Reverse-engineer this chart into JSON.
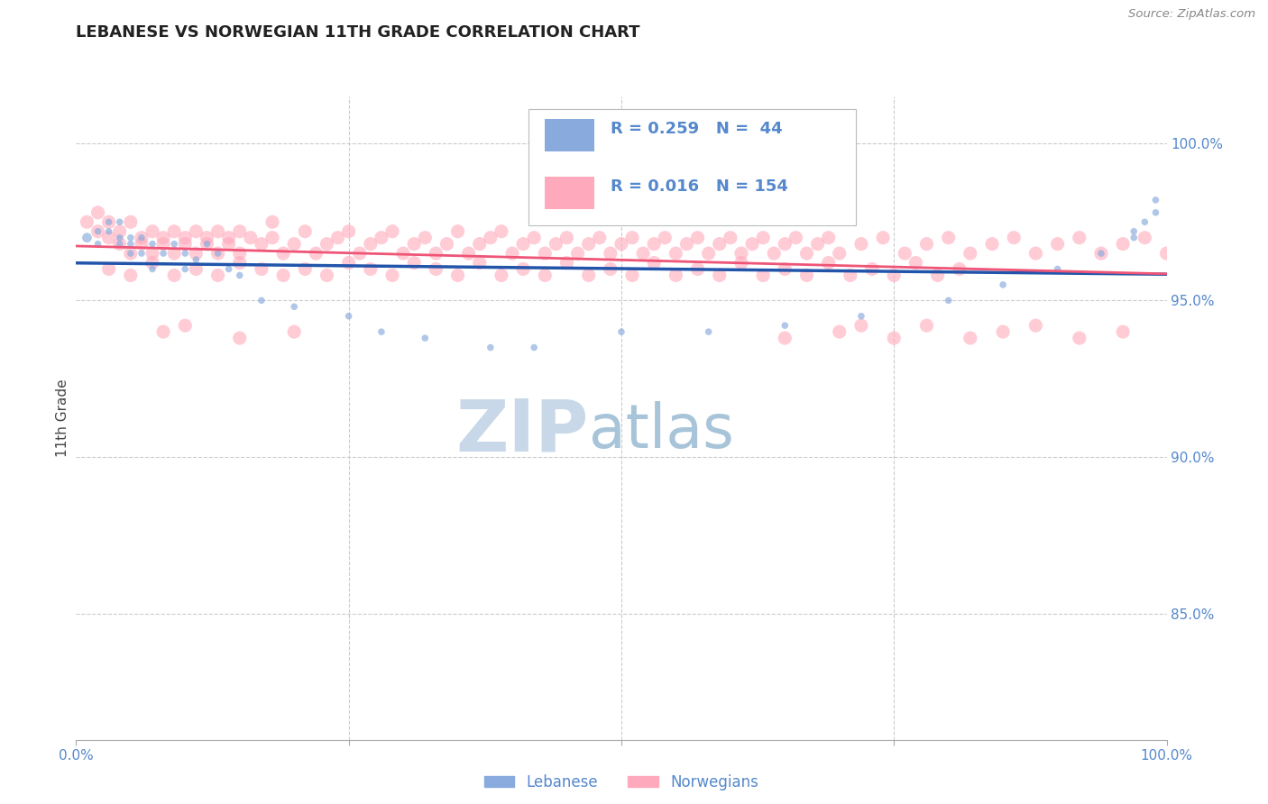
{
  "title": "LEBANESE VS NORWEGIAN 11TH GRADE CORRELATION CHART",
  "source": "Source: ZipAtlas.com",
  "ylabel": "11th Grade",
  "xlim": [
    0.0,
    1.0
  ],
  "ylim": [
    0.81,
    1.015
  ],
  "right_yticks": [
    1.0,
    0.95,
    0.9,
    0.85
  ],
  "right_yticklabels": [
    "100.0%",
    "95.0%",
    "90.0%",
    "85.0%"
  ],
  "lebanese_R": 0.259,
  "lebanese_N": 44,
  "norwegian_R": 0.016,
  "norwegian_N": 154,
  "blue_color": "#88AADD",
  "pink_color": "#FFAABC",
  "blue_line_color": "#2255AA",
  "pink_line_color": "#EE5577",
  "axis_color": "#5588CC",
  "watermark_zip_color": "#C8D8E8",
  "watermark_atlas_color": "#A8C4D8",
  "background_color": "#FFFFFF",
  "grid_color": "#CCCCCC",
  "lebanese_x": [
    0.01,
    0.02,
    0.02,
    0.03,
    0.03,
    0.04,
    0.04,
    0.04,
    0.05,
    0.05,
    0.05,
    0.06,
    0.06,
    0.07,
    0.07,
    0.08,
    0.09,
    0.1,
    0.1,
    0.11,
    0.12,
    0.13,
    0.14,
    0.15,
    0.17,
    0.2,
    0.25,
    0.28,
    0.32,
    0.38,
    0.42,
    0.5,
    0.58,
    0.65,
    0.72,
    0.8,
    0.85,
    0.9,
    0.94,
    0.97,
    0.97,
    0.98,
    0.99,
    0.99
  ],
  "lebanese_y": [
    0.97,
    0.968,
    0.972,
    0.972,
    0.975,
    0.97,
    0.968,
    0.975,
    0.97,
    0.965,
    0.968,
    0.965,
    0.97,
    0.96,
    0.968,
    0.965,
    0.968,
    0.96,
    0.965,
    0.963,
    0.968,
    0.965,
    0.96,
    0.958,
    0.95,
    0.948,
    0.945,
    0.94,
    0.938,
    0.935,
    0.935,
    0.94,
    0.94,
    0.942,
    0.945,
    0.95,
    0.955,
    0.96,
    0.965,
    0.97,
    0.972,
    0.975,
    0.978,
    0.982
  ],
  "lebanese_sizes": [
    60,
    30,
    30,
    30,
    30,
    30,
    30,
    30,
    30,
    30,
    30,
    30,
    30,
    30,
    30,
    30,
    30,
    30,
    30,
    30,
    30,
    30,
    30,
    30,
    30,
    30,
    30,
    30,
    30,
    30,
    30,
    30,
    30,
    30,
    30,
    30,
    30,
    30,
    30,
    30,
    30,
    30,
    30,
    30
  ],
  "norwegian_x": [
    0.01,
    0.02,
    0.02,
    0.03,
    0.03,
    0.04,
    0.04,
    0.05,
    0.05,
    0.06,
    0.06,
    0.07,
    0.07,
    0.08,
    0.08,
    0.09,
    0.09,
    0.1,
    0.1,
    0.11,
    0.11,
    0.12,
    0.12,
    0.13,
    0.13,
    0.14,
    0.14,
    0.15,
    0.15,
    0.16,
    0.17,
    0.18,
    0.18,
    0.19,
    0.2,
    0.21,
    0.22,
    0.23,
    0.24,
    0.25,
    0.26,
    0.27,
    0.28,
    0.29,
    0.3,
    0.31,
    0.32,
    0.33,
    0.34,
    0.35,
    0.36,
    0.37,
    0.38,
    0.39,
    0.4,
    0.41,
    0.42,
    0.43,
    0.44,
    0.45,
    0.46,
    0.47,
    0.48,
    0.49,
    0.5,
    0.51,
    0.52,
    0.53,
    0.54,
    0.55,
    0.56,
    0.57,
    0.58,
    0.59,
    0.6,
    0.61,
    0.62,
    0.63,
    0.64,
    0.65,
    0.66,
    0.67,
    0.68,
    0.69,
    0.7,
    0.72,
    0.74,
    0.76,
    0.78,
    0.8,
    0.82,
    0.84,
    0.86,
    0.88,
    0.9,
    0.92,
    0.94,
    0.96,
    0.98,
    1.0,
    0.03,
    0.05,
    0.07,
    0.09,
    0.11,
    0.13,
    0.15,
    0.17,
    0.19,
    0.21,
    0.23,
    0.25,
    0.27,
    0.29,
    0.31,
    0.33,
    0.35,
    0.37,
    0.39,
    0.41,
    0.43,
    0.45,
    0.47,
    0.49,
    0.51,
    0.53,
    0.55,
    0.57,
    0.59,
    0.61,
    0.63,
    0.65,
    0.67,
    0.69,
    0.71,
    0.73,
    0.75,
    0.77,
    0.79,
    0.81,
    0.08,
    0.1,
    0.15,
    0.2,
    0.65,
    0.7,
    0.72,
    0.75,
    0.78,
    0.82,
    0.85,
    0.88,
    0.92,
    0.96
  ],
  "norwegian_y": [
    0.975,
    0.978,
    0.972,
    0.975,
    0.97,
    0.972,
    0.968,
    0.975,
    0.965,
    0.97,
    0.968,
    0.972,
    0.965,
    0.97,
    0.968,
    0.972,
    0.965,
    0.97,
    0.968,
    0.972,
    0.965,
    0.97,
    0.968,
    0.972,
    0.965,
    0.97,
    0.968,
    0.972,
    0.965,
    0.97,
    0.968,
    0.975,
    0.97,
    0.965,
    0.968,
    0.972,
    0.965,
    0.968,
    0.97,
    0.972,
    0.965,
    0.968,
    0.97,
    0.972,
    0.965,
    0.968,
    0.97,
    0.965,
    0.968,
    0.972,
    0.965,
    0.968,
    0.97,
    0.972,
    0.965,
    0.968,
    0.97,
    0.965,
    0.968,
    0.97,
    0.965,
    0.968,
    0.97,
    0.965,
    0.968,
    0.97,
    0.965,
    0.968,
    0.97,
    0.965,
    0.968,
    0.97,
    0.965,
    0.968,
    0.97,
    0.965,
    0.968,
    0.97,
    0.965,
    0.968,
    0.97,
    0.965,
    0.968,
    0.97,
    0.965,
    0.968,
    0.97,
    0.965,
    0.968,
    0.97,
    0.965,
    0.968,
    0.97,
    0.965,
    0.968,
    0.97,
    0.965,
    0.968,
    0.97,
    0.965,
    0.96,
    0.958,
    0.962,
    0.958,
    0.96,
    0.958,
    0.962,
    0.96,
    0.958,
    0.96,
    0.958,
    0.962,
    0.96,
    0.958,
    0.962,
    0.96,
    0.958,
    0.962,
    0.958,
    0.96,
    0.958,
    0.962,
    0.958,
    0.96,
    0.958,
    0.962,
    0.958,
    0.96,
    0.958,
    0.962,
    0.958,
    0.96,
    0.958,
    0.962,
    0.958,
    0.96,
    0.958,
    0.962,
    0.958,
    0.96,
    0.94,
    0.942,
    0.938,
    0.94,
    0.938,
    0.94,
    0.942,
    0.938,
    0.942,
    0.938,
    0.94,
    0.942,
    0.938,
    0.94
  ]
}
